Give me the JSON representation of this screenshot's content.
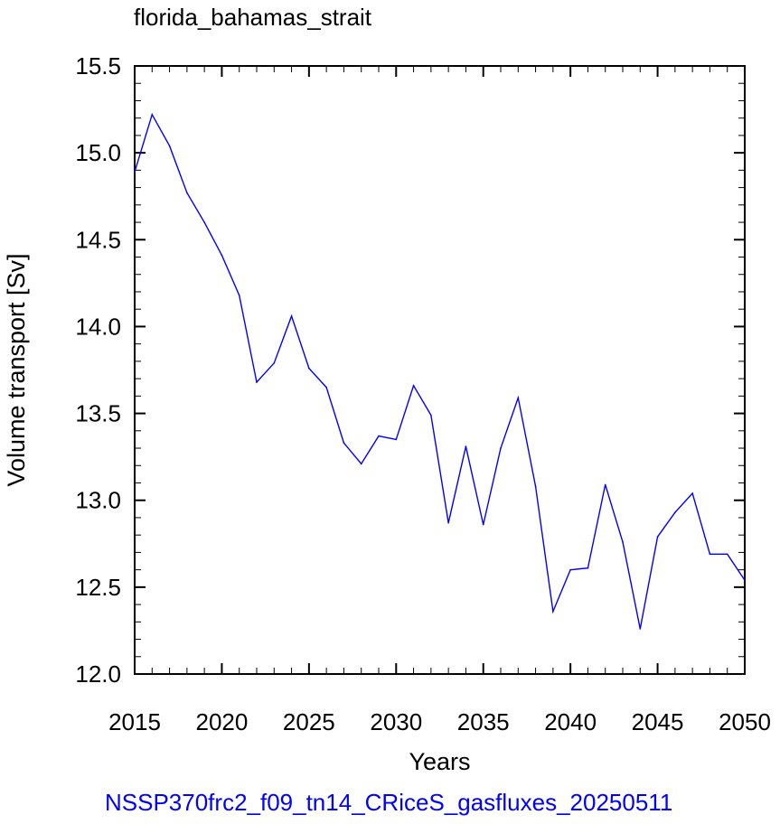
{
  "chart_data": {
    "type": "line",
    "title": "florida_bahamas_strait",
    "xlabel": "Years",
    "ylabel": "Volume transport [Sv]",
    "footer": "NSSP370frc2_f09_tn14_CRiceS_gasfluxes_20250511",
    "xlim": [
      2015,
      2050
    ],
    "ylim": [
      12.0,
      15.5
    ],
    "x_ticks": [
      2015,
      2020,
      2025,
      2030,
      2035,
      2040,
      2045,
      2050
    ],
    "y_ticks": [
      12.0,
      12.5,
      13.0,
      13.5,
      14.0,
      14.5,
      15.0,
      15.5
    ],
    "x_tick_labels": [
      "2015",
      "2020",
      "2025",
      "2030",
      "2035",
      "2040",
      "2045",
      "2050"
    ],
    "y_tick_labels": [
      "12.0",
      "12.5",
      "13.0",
      "13.5",
      "14.0",
      "14.5",
      "15.0",
      "15.5"
    ],
    "grid": false,
    "series": [
      {
        "color": "#0000ff",
        "x": [
          2015,
          2016,
          2017,
          2018,
          2019,
          2020,
          2021,
          2022,
          2023,
          2024,
          2025,
          2026,
          2027,
          2028,
          2029,
          2030,
          2031,
          2032,
          2033,
          2034,
          2035,
          2036,
          2037,
          2038,
          2039,
          2040,
          2041,
          2042,
          2043,
          2044,
          2045,
          2046,
          2047,
          2048,
          2049,
          2050
        ],
        "y": [
          14.89,
          15.22,
          15.04,
          14.77,
          14.6,
          14.41,
          14.18,
          13.68,
          13.79,
          14.06,
          13.76,
          13.65,
          13.33,
          13.21,
          13.37,
          13.35,
          13.66,
          13.49,
          12.87,
          13.31,
          12.86,
          13.3,
          13.59,
          13.08,
          12.36,
          12.6,
          12.61,
          13.09,
          12.76,
          12.26,
          12.79,
          12.93,
          13.04,
          12.69,
          12.69,
          12.54
        ]
      }
    ]
  }
}
